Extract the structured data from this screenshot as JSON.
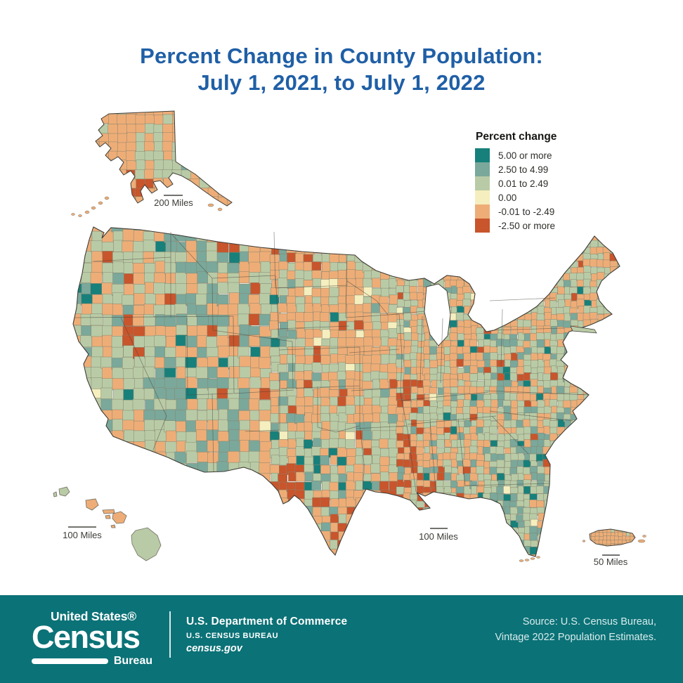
{
  "title": {
    "line1": "Percent Change in County Population:",
    "line2": "July 1, 2021, to July 1, 2022",
    "color": "#1f5fa6"
  },
  "legend": {
    "title": "Percent change",
    "items": [
      {
        "label": "5.00 or more",
        "color": "#17807b"
      },
      {
        "label": "2.50 to 4.99",
        "color": "#7aa89b"
      },
      {
        "label": "0.01 to 2.49",
        "color": "#b9cba6"
      },
      {
        "label": "0.00",
        "color": "#f5eebe"
      },
      {
        "label": "-0.01 to -2.49",
        "color": "#eead77"
      },
      {
        "label": "-2.50 or more",
        "color": "#c8552c"
      }
    ]
  },
  "scale_bars": {
    "alaska": "200 Miles",
    "hawaii": "100 Miles",
    "main": "100 Miles",
    "puerto_rico": "50 Miles"
  },
  "footer": {
    "background": "#0b7277",
    "logo": {
      "top": "United States®",
      "main": "Census",
      "sub": "Bureau"
    },
    "dept": "U.S. Department of Commerce",
    "bureau": "U.S. CENSUS BUREAU",
    "site": "census.gov",
    "source_line1": "Source: U.S. Census Bureau,",
    "source_line2": "Vintage 2022 Population Estimates."
  },
  "chart_data": {
    "type": "choropleth_map",
    "title": "Percent Change in County Population: July 1, 2021, to July 1, 2022",
    "geography": "U.S. counties",
    "legend_title": "Percent change",
    "classes": [
      {
        "label": "5.00 or more",
        "color": "#17807b"
      },
      {
        "label": "2.50 to 4.99",
        "color": "#7aa89b"
      },
      {
        "label": "0.01 to 2.49",
        "color": "#b9cba6"
      },
      {
        "label": "0.00",
        "color": "#f5eebe"
      },
      {
        "label": "-0.01 to -2.49",
        "color": "#eead77"
      },
      {
        "label": "-2.50 or more",
        "color": "#c8552c"
      }
    ],
    "insets": [
      {
        "name": "Alaska",
        "scale_bar": "200 Miles"
      },
      {
        "name": "Hawaii",
        "scale_bar": "100 Miles"
      },
      {
        "name": "Contiguous United States",
        "scale_bar": "100 Miles"
      },
      {
        "name": "Puerto Rico",
        "scale_bar": "50 Miles"
      }
    ]
  }
}
